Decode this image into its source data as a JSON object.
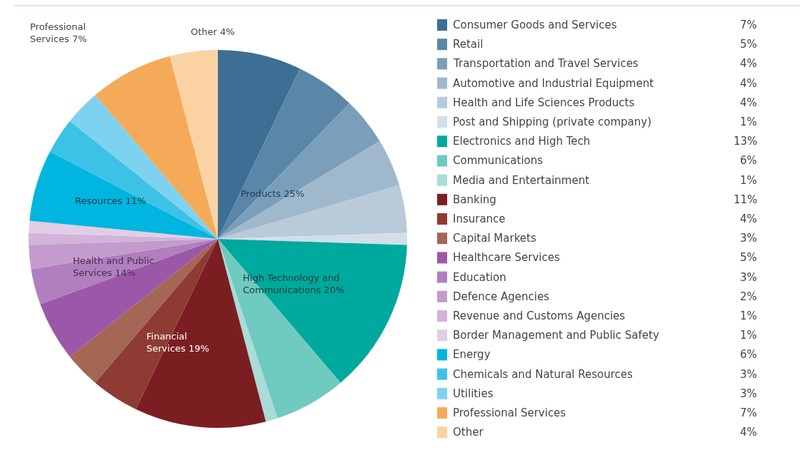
{
  "chart_data": {
    "type": "pie",
    "categories": [
      "Consumer Goods and Services",
      "Retail",
      "Transportation and Travel Services",
      "Automotive and Industrial Equipment",
      "Health and Life Sciences Products",
      "Post and Shipping (private company)",
      "Electronics and High Tech",
      "Communications",
      "Media and Entertainment",
      "Banking",
      "Insurance",
      "Capital Markets",
      "Healthcare Services",
      "Education",
      "Defence Agencies",
      "Revenue and Customs Agencies",
      "Border Management and Public Safety",
      "Energy",
      "Chemicals and Natural Resources",
      "Utilities",
      "Professional Services",
      "Other"
    ],
    "values": [
      7,
      5,
      4,
      4,
      4,
      1,
      13,
      6,
      1,
      11,
      4,
      3,
      5,
      3,
      2,
      1,
      1,
      6,
      3,
      3,
      7,
      4
    ],
    "value_labels": [
      "7%",
      "5%",
      "4%",
      "4%",
      "4%",
      "1%",
      "13%",
      "6%",
      "1%",
      "11%",
      "4%",
      "3%",
      "5%",
      "3%",
      "2%",
      "1%",
      "1%",
      "6%",
      "3%",
      "3%",
      "7%",
      "4%"
    ],
    "colors": [
      "#3d6e94",
      "#5a87a8",
      "#7b9fba",
      "#a0b8cc",
      "#b9cad9",
      "#d3dfe8",
      "#00a99d",
      "#6fcac0",
      "#a9dcd8",
      "#7b1e22",
      "#8e3b33",
      "#a46655",
      "#9c58a8",
      "#b07fbd",
      "#c39bcc",
      "#d2b3d9",
      "#e2cde6",
      "#00b5df",
      "#3cc2e6",
      "#7dd3ef",
      "#f5aa5a",
      "#fbd3a3"
    ],
    "annotations": [
      "Professional\nServices 7%",
      "Other 4%",
      "Products 25%",
      "High Technology and\nCommunications 20%",
      "Resources 11%",
      "Health and Public\nServices 14%",
      "Financial\nServices 19%"
    ],
    "legend": "right"
  }
}
